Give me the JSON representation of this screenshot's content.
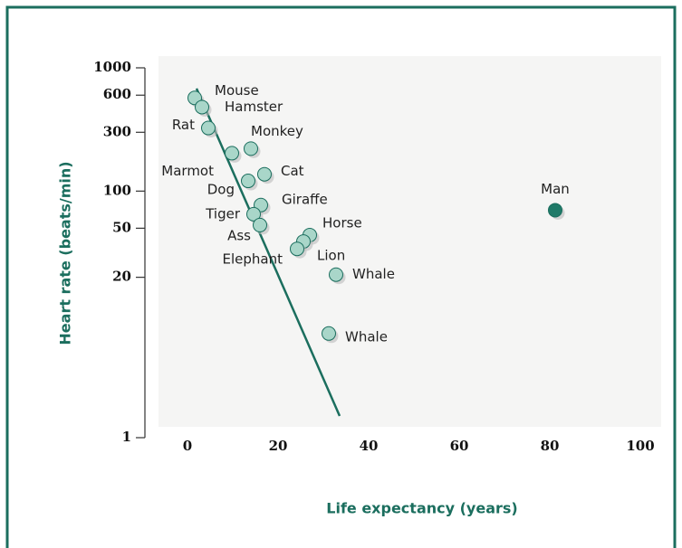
{
  "chart_data": {
    "type": "scatter",
    "x_label": "Life expectancy (years)",
    "y_label": "Heart rate (beats/min)",
    "labels": [
      "Mouse",
      "Hamster",
      "Rat",
      "Monkey",
      "Marmot",
      "Cat",
      "Dog",
      "Giraffe",
      "Tiger",
      "Ass",
      "Horse",
      "Lion",
      "Elephant",
      "Whale",
      "Whale",
      "Man"
    ],
    "x": [
      1.6,
      3.2,
      4.6,
      14,
      9.8,
      17,
      13.4,
      16.2,
      14.6,
      16,
      27,
      25.6,
      24.2,
      32.8,
      31.2,
      81.2
    ],
    "values": [
      570,
      480,
      325,
      221,
      203,
      137,
      121,
      77,
      65,
      53,
      44,
      39,
      34,
      21,
      7,
      70
    ],
    "colors": [
      "#a9d6c9",
      "#a9d6c9",
      "#a9d6c9",
      "#a9d6c9",
      "#a9d6c9",
      "#a9d6c9",
      "#a9d6c9",
      "#a9d6c9",
      "#a9d6c9",
      "#a9d6c9",
      "#a9d6c9",
      "#a9d6c9",
      "#a9d6c9",
      "#a9d6c9",
      "#a9d6c9",
      "#1f7a68"
    ],
    "line_color": "#1b6e5e",
    "fit_line": {
      "x": [
        2,
        33.6
      ],
      "y": [
        680,
        1.5
      ]
    },
    "xlim": [
      0,
      100
    ],
    "xticks": [
      0,
      20,
      40,
      60,
      80,
      100
    ],
    "ylim": [
      1,
      1000
    ],
    "yticks": [
      1,
      20,
      50,
      100,
      300,
      600,
      1000
    ],
    "log_scale": true
  }
}
